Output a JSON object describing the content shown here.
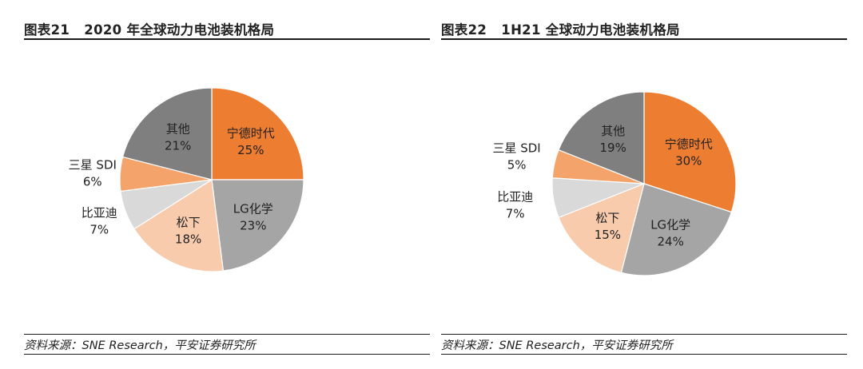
{
  "colors": {
    "宁德时代": "#ed7d31",
    "LG化学": "#a5a5a5",
    "松下": "#f8cbad",
    "比亚迪": "#d9d9d9",
    "三星 SDI": "#f4a46b",
    "其他": "#7f7f7f"
  },
  "chart_data": [
    {
      "type": "pie",
      "title": "图表21   2020 年全球动力电池装机格局",
      "source": "资料来源：SNE Research，平安证券研究所",
      "slices": [
        {
          "label": "宁德时代",
          "value": 25,
          "value_label": "25%"
        },
        {
          "label": "LG化学",
          "value": 23,
          "value_label": "23%"
        },
        {
          "label": "松下",
          "value": 18,
          "value_label": "18%"
        },
        {
          "label": "比亚迪",
          "value": 7,
          "value_label": "7%"
        },
        {
          "label": "三星 SDI",
          "value": 6,
          "value_label": "6%"
        },
        {
          "label": "其他",
          "value": 21,
          "value_label": "21%"
        }
      ]
    },
    {
      "type": "pie",
      "title": "图表22   1H21 全球动力电池装机格局",
      "source": "资料来源：SNE Research，平安证券研究所",
      "slices": [
        {
          "label": "宁德时代",
          "value": 30,
          "value_label": "30%"
        },
        {
          "label": "LG化学",
          "value": 24,
          "value_label": "24%"
        },
        {
          "label": "松下",
          "value": 15,
          "value_label": "15%"
        },
        {
          "label": "比亚迪",
          "value": 7,
          "value_label": "7%"
        },
        {
          "label": "三星 SDI",
          "value": 5,
          "value_label": "5%"
        },
        {
          "label": "其他",
          "value": 19,
          "value_label": "19%"
        }
      ]
    }
  ]
}
